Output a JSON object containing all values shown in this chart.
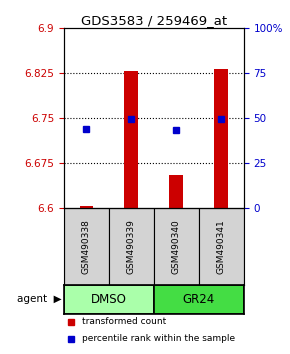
{
  "title": "GDS3583 / 259469_at",
  "samples": [
    "GSM490338",
    "GSM490339",
    "GSM490340",
    "GSM490341"
  ],
  "groups": [
    "DMSO",
    "DMSO",
    "GR24",
    "GR24"
  ],
  "bar_values": [
    6.603,
    6.828,
    6.655,
    6.832
  ],
  "bar_base": 6.6,
  "percentile_values": [
    6.732,
    6.748,
    6.731,
    6.748
  ],
  "ylim_left": [
    6.6,
    6.9
  ],
  "yticks_left": [
    6.6,
    6.675,
    6.75,
    6.825,
    6.9
  ],
  "ytick_labels_left": [
    "6.6",
    "6.675",
    "6.75",
    "6.825",
    "6.9"
  ],
  "yticks_right": [
    0,
    25,
    50,
    75,
    100
  ],
  "ytick_labels_right": [
    "0",
    "25",
    "50",
    "75",
    "100%"
  ],
  "bar_color": "#CC0000",
  "percentile_color": "#0000CC",
  "sample_box_color": "#D3D3D3",
  "agent_groups": [
    {
      "label": "DMSO",
      "span": [
        0,
        2
      ],
      "color": "#AAFFAA"
    },
    {
      "label": "GR24",
      "span": [
        2,
        4
      ],
      "color": "#44DD44"
    }
  ],
  "legend_items": [
    {
      "color": "#CC0000",
      "label": "transformed count"
    },
    {
      "color": "#0000CC",
      "label": "percentile rank within the sample"
    }
  ]
}
